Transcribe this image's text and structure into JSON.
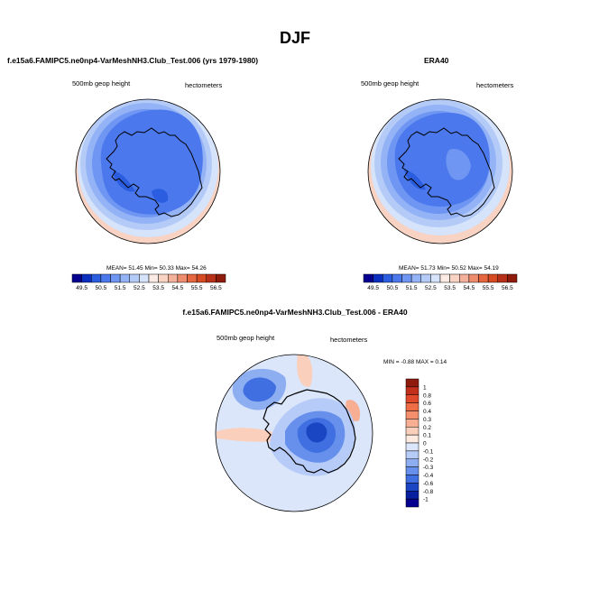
{
  "title": "DJF",
  "panels": [
    {
      "title": "f.e15a6.FAMIPC5.ne0np4-VarMeshNH3.Club_Test.006 (yrs 1979-1980)",
      "left_label": "500mb geop height",
      "right_label": "hectometers",
      "stats": "MEAN= 51.45  Min= 50.33  Max= 54.26"
    },
    {
      "title": "ERA40",
      "left_label": "500mb geop height",
      "right_label": "hectometers",
      "stats": "MEAN= 51.73  Min= 50.52  Max= 54.19"
    },
    {
      "title": "f.e15a6.FAMIPC5.ne0np4-VarMeshNH3.Club_Test.006 - ERA40",
      "left_label": "500mb geop height",
      "right_label": "hectometers",
      "stats": "MIN = -0.88 MAX = 0.14"
    }
  ],
  "chart_data": [
    {
      "type": "heatmap",
      "projection": "polar stereographic (south pole)",
      "colorbar": {
        "orientation": "horizontal",
        "labels": [
          "49.5",
          "50.5",
          "51.5",
          "52.5",
          "53.5",
          "54.5",
          "55.5",
          "56.5"
        ],
        "colors": [
          "#05008f",
          "#0a2fc0",
          "#2a5de0",
          "#4b78ec",
          "#6e96f2",
          "#93b3f6",
          "#b4cbf8",
          "#d5e3fb",
          "#fcebe4",
          "#f8d2c2",
          "#f3b09a",
          "#ee8c6e",
          "#e6663f",
          "#d64a24",
          "#b8301a",
          "#8f1b0c"
        ],
        "range": [
          49.5,
          56.5
        ]
      },
      "summary": {
        "mean": 51.45,
        "min": 50.33,
        "max": 54.26
      }
    },
    {
      "type": "heatmap",
      "projection": "polar stereographic (south pole)",
      "colorbar": {
        "orientation": "horizontal",
        "labels": [
          "49.5",
          "50.5",
          "51.5",
          "52.5",
          "53.5",
          "54.5",
          "55.5",
          "56.5"
        ],
        "colors": [
          "#05008f",
          "#0a2fc0",
          "#2a5de0",
          "#4b78ec",
          "#6e96f2",
          "#93b3f6",
          "#b4cbf8",
          "#d5e3fb",
          "#fcebe4",
          "#f8d2c2",
          "#f3b09a",
          "#ee8c6e",
          "#e6663f",
          "#d64a24",
          "#b8301a",
          "#8f1b0c"
        ],
        "range": [
          49.5,
          56.5
        ]
      },
      "summary": {
        "mean": 51.73,
        "min": 50.52,
        "max": 54.19
      }
    },
    {
      "type": "heatmap",
      "projection": "polar stereographic (south pole)",
      "colorbar": {
        "orientation": "vertical",
        "labels": [
          "1",
          "0.8",
          "0.6",
          "0.4",
          "0.3",
          "0.2",
          "0.1",
          "0",
          "-0.1",
          "-0.2",
          "-0.3",
          "-0.4",
          "-0.6",
          "-0.8",
          "-1"
        ],
        "colors": [
          "#8f1b0c",
          "#c22f1a",
          "#e0492a",
          "#ee6d47",
          "#f38f6c",
          "#f7ae92",
          "#fad0bc",
          "#fdeae0",
          "#dbe6fb",
          "#b6cbf7",
          "#8eaef2",
          "#6790ec",
          "#3f6fe0",
          "#1a46c4",
          "#08209f",
          "#05008f"
        ],
        "range": [
          -1,
          1
        ]
      },
      "summary": {
        "min": -0.88,
        "max": 0.14
      }
    }
  ],
  "colors": {
    "map_deep_blue": "#2a5de0",
    "map_mid_blue": "#4b78ec",
    "map_light_blue": "#93b3f6",
    "map_pale_blue": "#d5e3fb",
    "map_warm": "#f8d2c2"
  }
}
